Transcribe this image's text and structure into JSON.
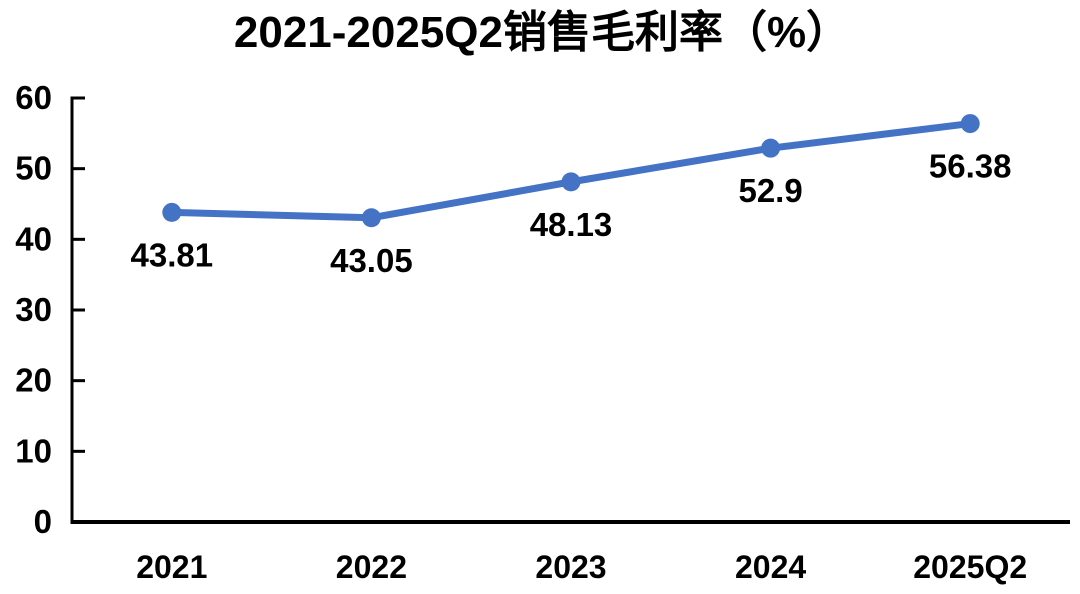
{
  "chart_data": {
    "type": "line",
    "title": "2021-2025Q2销售毛利率（%）",
    "categories": [
      "2021",
      "2022",
      "2023",
      "2024",
      "2025Q2"
    ],
    "values": [
      43.81,
      43.05,
      48.13,
      52.9,
      56.38
    ],
    "data_labels": [
      "43.81",
      "43.05",
      "48.13",
      "52.9",
      "56.38"
    ],
    "ylim": [
      0,
      60
    ],
    "yticks": [
      "0",
      "10",
      "20",
      "30",
      "40",
      "50",
      "60"
    ],
    "grid": false,
    "legend": "none",
    "line_color": "#4472C4",
    "marker": "circle",
    "axis_color": "#000000",
    "text_color": "#000000",
    "background": "#FFFFFF"
  }
}
